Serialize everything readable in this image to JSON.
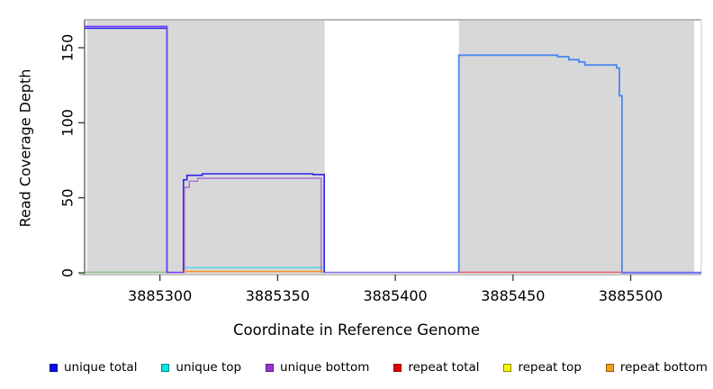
{
  "figure": {
    "x_axis_title": "Coordinate in Reference Genome",
    "y_axis_title": "Read Coverage Depth"
  },
  "chart_data": {
    "type": "line",
    "title": "",
    "xlabel": "Coordinate in Reference Genome",
    "ylabel": "Read Coverage Depth",
    "xlim": [
      3885268,
      3885530
    ],
    "ylim": [
      0,
      168
    ],
    "x_ticks": [
      3885300,
      3885350,
      3885400,
      3885450,
      3885500
    ],
    "y_ticks": [
      0,
      50,
      100,
      150
    ],
    "grid": false,
    "plot_background": "#ffffff",
    "shaded_region_color": "#d8d8d8",
    "shaded_regions": [
      {
        "x_start": 3885269,
        "x_end": 3885370
      },
      {
        "x_start": 3885427,
        "x_end": 3885527
      }
    ],
    "series": [
      {
        "name": "unique total",
        "segments": [
          {
            "color": "#2c22ec",
            "width": 1.6,
            "points": [
              [
                3885268,
                163
              ],
              [
                3885303,
                163
              ],
              [
                3885303,
                0
              ]
            ]
          },
          {
            "color": "#2c22ec",
            "width": 1.6,
            "points": [
              [
                3885310,
                0
              ],
              [
                3885310,
                62
              ],
              [
                3885311.5,
                62
              ],
              [
                3885311.5,
                65
              ],
              [
                3885318,
                65
              ],
              [
                3885318,
                66
              ],
              [
                3885365,
                66
              ],
              [
                3885365,
                65.5
              ],
              [
                3885369.8,
                65.5
              ],
              [
                3885369.8,
                0
              ]
            ]
          },
          {
            "color": "#4d86f0",
            "width": 1.8,
            "points": [
              [
                3885427,
                0
              ],
              [
                3885427,
                145
              ],
              [
                3885469,
                145
              ],
              [
                3885469,
                144
              ],
              [
                3885473.7,
                144
              ],
              [
                3885473.7,
                142
              ],
              [
                3885478,
                142
              ],
              [
                3885478,
                140.5
              ],
              [
                3885480.5,
                140.5
              ],
              [
                3885480.5,
                138.5
              ],
              [
                3885494,
                138.5
              ],
              [
                3885494,
                136.5
              ],
              [
                3885495.2,
                136.5
              ],
              [
                3885495.2,
                118
              ],
              [
                3885496.3,
                118
              ],
              [
                3885496.3,
                0
              ],
              [
                3885530,
                0
              ]
            ]
          }
        ]
      },
      {
        "name": "unique top",
        "segments": [
          {
            "color": "#45d6de",
            "width": 1.3,
            "points": [
              [
                3885310.5,
                3.5
              ],
              [
                3885369.5,
                3.5
              ]
            ]
          },
          {
            "color": "#85c285",
            "width": 1.3,
            "points": [
              [
                3885268,
                0.4
              ],
              [
                3885303,
                0.4
              ]
            ]
          }
        ]
      },
      {
        "name": "unique bottom",
        "segments": [
          {
            "color": "#7a3df0",
            "width": 1.5,
            "points": [
              [
                3885268,
                164.2
              ],
              [
                3885303,
                164.2
              ],
              [
                3885303,
                0.3
              ],
              [
                3885310,
                0.3
              ]
            ]
          },
          {
            "color": "#a96fd4",
            "width": 1.4,
            "points": [
              [
                3885310.4,
                0
              ],
              [
                3885310.4,
                57
              ],
              [
                3885312.5,
                57
              ],
              [
                3885312.5,
                61
              ],
              [
                3885316,
                61
              ],
              [
                3885316,
                63
              ],
              [
                3885368.5,
                63
              ],
              [
                3885368.5,
                0
              ]
            ]
          },
          {
            "color": "#7b68ee",
            "width": 1.4,
            "points": [
              [
                3885369.8,
                0.3
              ],
              [
                3885427,
                0.3
              ]
            ]
          },
          {
            "color": "#7b68ee",
            "width": 1.4,
            "points": [
              [
                3885496.3,
                0.3
              ],
              [
                3885530,
                0.3
              ]
            ]
          }
        ]
      },
      {
        "name": "repeat total",
        "segments": [
          {
            "color": "#e4606d",
            "width": 1.3,
            "points": [
              [
                3885427,
                0.4
              ],
              [
                3885496.3,
                0.4
              ]
            ]
          }
        ]
      },
      {
        "name": "repeat top",
        "segments": []
      },
      {
        "name": "repeat bottom",
        "segments": [
          {
            "color": "#f59426",
            "width": 1.4,
            "points": [
              [
                3885310,
                0.9
              ],
              [
                3885369.5,
                0.9
              ]
            ]
          }
        ]
      }
    ],
    "legend": {
      "position": "bottom",
      "items": [
        {
          "label": "unique total",
          "color": "#0d0deb",
          "border": "#00008b"
        },
        {
          "label": "unique top",
          "color": "#00e5e5",
          "border": "#008b8b"
        },
        {
          "label": "unique bottom",
          "color": "#9a32cd",
          "border": "#551a8b"
        },
        {
          "label": "repeat total",
          "color": "#e60000",
          "border": "#8b0000"
        },
        {
          "label": "repeat top",
          "color": "#f8f800",
          "border": "#8b8b00"
        },
        {
          "label": "repeat bottom",
          "color": "#f5a01e",
          "border": "#8b5a00"
        }
      ]
    },
    "axis_colors": {
      "box": "#8d8d8d",
      "axis_line": "#4a4a4a",
      "tick": "#333333",
      "tick_label": "#000000"
    }
  }
}
